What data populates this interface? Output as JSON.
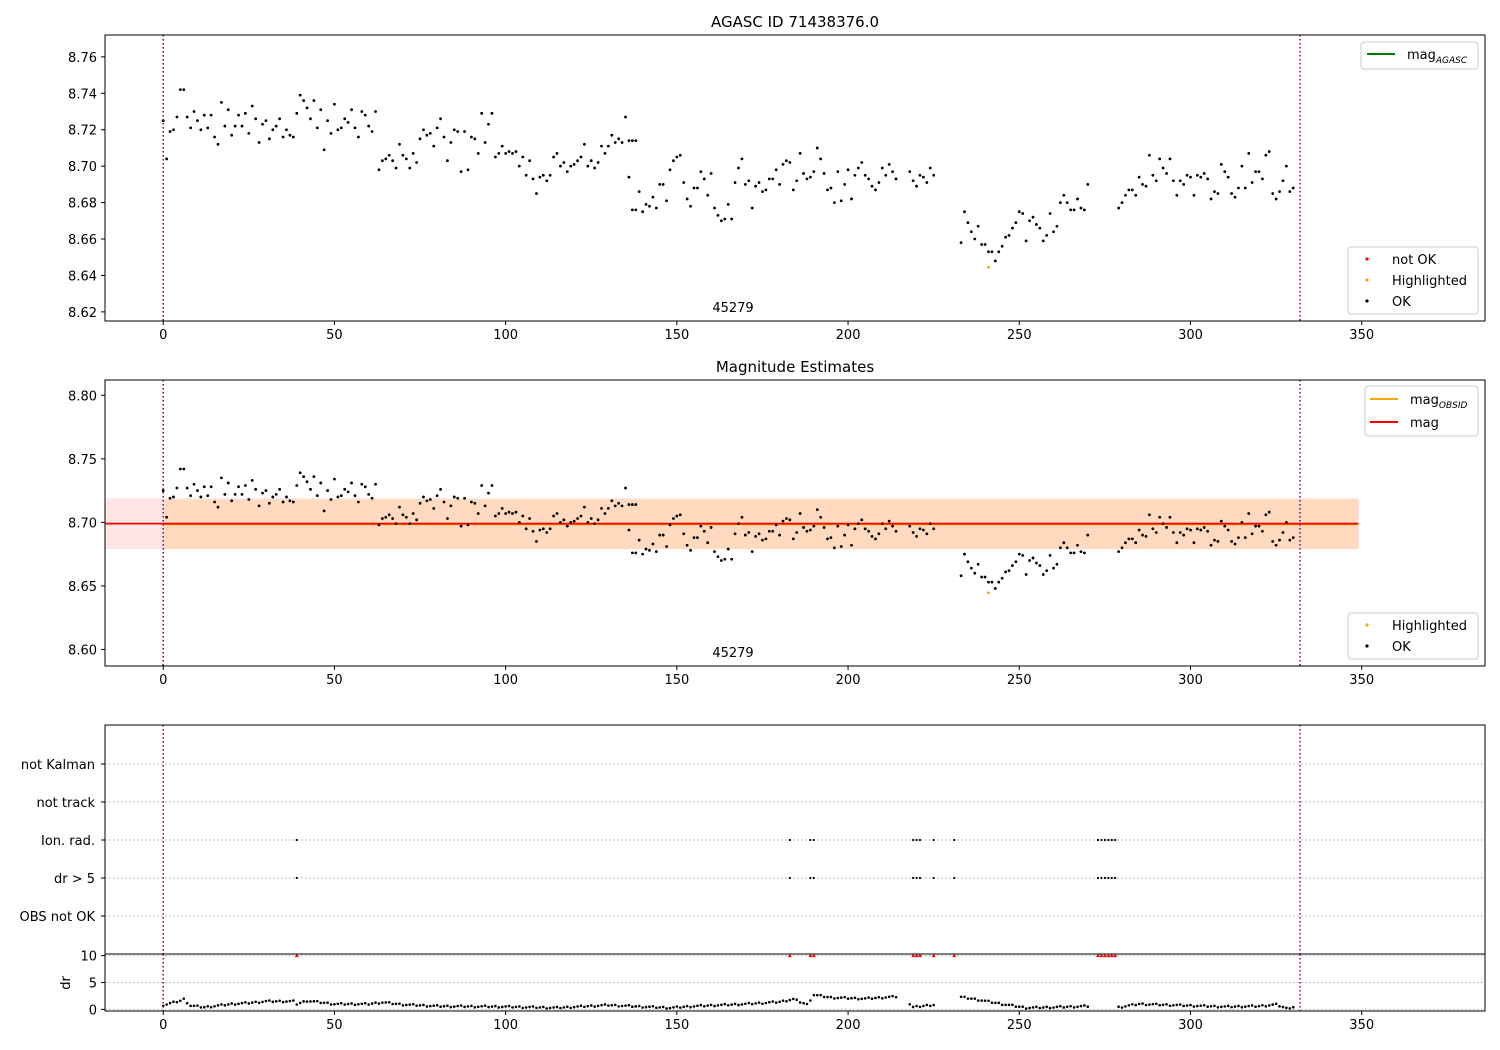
{
  "chart_data": [
    {
      "type": "scatter",
      "title": "AGASC ID 71438376.0",
      "annotation": "45279",
      "x_ticks": [
        0,
        50,
        100,
        150,
        200,
        250,
        300,
        350
      ],
      "x_range": [
        -17,
        386
      ],
      "y_ticks": [
        8.62,
        8.64,
        8.66,
        8.68,
        8.7,
        8.72,
        8.74,
        8.76
      ],
      "y_range": [
        8.615,
        8.772
      ],
      "vlines": [
        0,
        332
      ],
      "legend_lines": [
        {
          "label": "mag",
          "sub": "AGASC",
          "color": "#008000"
        }
      ],
      "legend_points": [
        {
          "label": "not OK",
          "color": "#ff0000"
        },
        {
          "label": "Highlighted",
          "color": "#ffa500"
        },
        {
          "label": "OK",
          "color": "#000000"
        }
      ],
      "highlighted": [
        [
          241,
          8.6445
        ]
      ],
      "series_segments": [
        {
          "x0": 0,
          "y": [
            8.725,
            8.704,
            8.719,
            8.72,
            8.727,
            8.742,
            8.742,
            8.727,
            8.721,
            8.73,
            8.725,
            8.72,
            8.728,
            8.721,
            8.728,
            8.716,
            8.712,
            8.735,
            8.722,
            8.731,
            8.717,
            8.722,
            8.728,
            8.722,
            8.729,
            8.718,
            8.733,
            8.726,
            8.713,
            8.723,
            8.725,
            8.715,
            8.72,
            8.722,
            8.726,
            8.716,
            8.72,
            8.717,
            8.716,
            8.729,
            8.739,
            8.736,
            8.732,
            8.726,
            8.736,
            8.721,
            8.731,
            8.709,
            8.725,
            8.718,
            8.734,
            8.72,
            8.721,
            8.726,
            8.724,
            8.731,
            8.721,
            8.716,
            8.73,
            8.728,
            8.722,
            8.719,
            8.73,
            8.698,
            8.703,
            8.704,
            8.706,
            8.703,
            8.699,
            8.712,
            8.706,
            8.704,
            8.699,
            8.707,
            8.702,
            8.715,
            8.72,
            8.717,
            8.718,
            8.711,
            8.721,
            8.726,
            8.716,
            8.703,
            8.713,
            8.72,
            8.719,
            8.697,
            8.719,
            8.698,
            8.716,
            8.715,
            8.707,
            8.729,
            8.713,
            8.723,
            8.729,
            8.705,
            8.707,
            8.711,
            8.707,
            8.708,
            8.707,
            8.708,
            8.7,
            8.705,
            8.695,
            8.703,
            8.693,
            8.685,
            8.694,
            8.695,
            8.692,
            8.695,
            8.705,
            8.707,
            8.7,
            8.702,
            8.697,
            8.7,
            8.701,
            8.703,
            8.705,
            8.712,
            8.7,
            8.703,
            8.699,
            8.702,
            8.711,
            8.707,
            8.711,
            8.717,
            8.713,
            8.715,
            8.713,
            8.727,
            8.714,
            8.714,
            8.714
          ]
        },
        {
          "x0": 136,
          "y": [
            8.694,
            8.676,
            8.676,
            8.686,
            8.675,
            8.679,
            8.678,
            8.683,
            8.677,
            8.69,
            8.69,
            8.681,
            8.698,
            8.703,
            8.705,
            8.706,
            8.691,
            8.682,
            8.678,
            8.688,
            8.688,
            8.697,
            8.693,
            8.684,
            8.696,
            8.677,
            8.673,
            8.67,
            8.671,
            8.679,
            8.671,
            8.691,
            8.699,
            8.704,
            8.69,
            8.692,
            8.677,
            8.689,
            8.691,
            8.686,
            8.687,
            8.693,
            8.693,
            8.698,
            8.69,
            8.701,
            8.703,
            8.702,
            8.687,
            8.692,
            8.707,
            8.696,
            8.693,
            8.694,
            8.697,
            8.71,
            8.704,
            8.696,
            8.687,
            8.688,
            8.68,
            8.697,
            8.681,
            8.69,
            8.698,
            8.682,
            8.695,
            8.699,
            8.702,
            8.695,
            8.693,
            8.689,
            8.687,
            8.691,
            8.699,
            8.695,
            8.701,
            8.697,
            8.693
          ]
        },
        {
          "x0": 218,
          "y": [
            8.697,
            8.692,
            8.689,
            8.695,
            8.694,
            8.691,
            8.699,
            8.695
          ]
        },
        {
          "x0": 233,
          "y": [
            8.658,
            8.675,
            8.669,
            8.664,
            8.66,
            8.667,
            8.657,
            8.657,
            8.653,
            8.653,
            8.648,
            8.653,
            8.656,
            8.661,
            8.662,
            8.666,
            8.669,
            8.675,
            8.674,
            8.659,
            8.67,
            8.672,
            8.668,
            8.666,
            8.659,
            8.662,
            8.674,
            8.664,
            8.667,
            8.68,
            8.684,
            8.68,
            8.676,
            8.676,
            8.682,
            8.677,
            8.676,
            8.69
          ]
        },
        {
          "x0": 279,
          "y": [
            8.677,
            8.68,
            8.684,
            8.687,
            8.687,
            8.684,
            8.694,
            8.69,
            8.689,
            8.706,
            8.695,
            8.692,
            8.704,
            8.699,
            8.696,
            8.704,
            8.692,
            8.684,
            8.692,
            8.69,
            8.695,
            8.694,
            8.684,
            8.695,
            8.694,
            8.696,
            8.693,
            8.682,
            8.686,
            8.685,
            8.701,
            8.697,
            8.694,
            8.685,
            8.683,
            8.688,
            8.7,
            8.688,
            8.707,
            8.691,
            8.697,
            8.697,
            8.693,
            8.706,
            8.708,
            8.685,
            8.682,
            8.686,
            8.692,
            8.7,
            8.686,
            8.688
          ]
        }
      ]
    },
    {
      "type": "scatter",
      "title": "Magnitude Estimates",
      "annotation": "45279",
      "x_ticks": [
        0,
        50,
        100,
        150,
        200,
        250,
        300,
        350
      ],
      "x_range": [
        -17,
        386
      ],
      "y_ticks": [
        8.6,
        8.65,
        8.7,
        8.75,
        8.8
      ],
      "y_ticks_labels": [
        "8.60",
        "8.65",
        "8.70",
        "8.75",
        "8.80"
      ],
      "y_range": [
        8.587,
        8.812
      ],
      "vlines": [
        0,
        332
      ],
      "mag": 8.699,
      "mag_band": [
        8.679,
        8.719
      ],
      "mag_band_x": [
        -17,
        349
      ],
      "mag_obsid": 8.6985,
      "mag_obsid_band": [
        8.679,
        8.718
      ],
      "mag_obsid_band_x": [
        0,
        349
      ],
      "legend_lines": [
        {
          "label": "mag",
          "sub": "OBSID",
          "color": "#ffa500"
        },
        {
          "label": "mag",
          "sub": "",
          "color": "#ff0000"
        }
      ],
      "legend_points": [
        {
          "label": "Highlighted",
          "color": "#ffa500"
        },
        {
          "label": "OK",
          "color": "#000000"
        }
      ],
      "highlighted": [
        [
          241,
          8.6445
        ]
      ]
    },
    {
      "type": "scatter",
      "title": "",
      "y_categories": [
        "not Kalman",
        "not track",
        "Ion. rad.",
        "dr > 5",
        "OBS not OK"
      ],
      "flags": {
        "Ion. rad.": [
          39,
          183,
          189,
          190,
          219,
          220,
          221,
          225,
          231,
          273,
          274,
          275,
          276,
          277,
          278
        ],
        "dr > 5": [
          39,
          183,
          189,
          190,
          219,
          220,
          221,
          225,
          231,
          273,
          274,
          275,
          276,
          277,
          278
        ]
      },
      "x_range": [
        -17,
        386
      ],
      "vlines": [
        0,
        332
      ]
    },
    {
      "type": "scatter",
      "ylabel": "dr",
      "y_ticks": [
        0,
        5,
        10
      ],
      "y_range": [
        -0.3,
        10.3
      ],
      "x_ticks": [
        0,
        50,
        100,
        150,
        200,
        250,
        300,
        350
      ],
      "x_range": [
        -17,
        386
      ],
      "vlines": [
        0,
        332
      ],
      "capped_value": 10,
      "capped_points": [
        39,
        183,
        189,
        190,
        219,
        220,
        221,
        225,
        231,
        273,
        274,
        275,
        276,
        277,
        278
      ],
      "dr_profile": [
        [
          0,
          0.8
        ],
        [
          5,
          1.6
        ],
        [
          6,
          1.9
        ],
        [
          8,
          0.7
        ],
        [
          12,
          0.4
        ],
        [
          20,
          1.0
        ],
        [
          25,
          1.2
        ],
        [
          30,
          1.5
        ],
        [
          38,
          1.5
        ],
        [
          39,
          1.0
        ],
        [
          42,
          1.6
        ],
        [
          50,
          1.0
        ],
        [
          60,
          1.0
        ],
        [
          64,
          1.3
        ],
        [
          70,
          0.9
        ],
        [
          80,
          0.6
        ],
        [
          100,
          0.5
        ],
        [
          115,
          0.3
        ],
        [
          130,
          0.8
        ],
        [
          140,
          0.5
        ],
        [
          148,
          0.3
        ],
        [
          155,
          0.6
        ],
        [
          170,
          1.0
        ],
        [
          180,
          1.4
        ],
        [
          184,
          1.9
        ],
        [
          188,
          0.9
        ],
        [
          190,
          2.7
        ],
        [
          195,
          2.2
        ],
        [
          205,
          2.0
        ],
        [
          217,
          2.5
        ],
        [
          218,
          1.0
        ],
        [
          219,
          0.4
        ],
        [
          224,
          0.8
        ],
        [
          230,
          1.2
        ],
        [
          232,
          2.4
        ],
        [
          238,
          1.8
        ],
        [
          245,
          1.0
        ],
        [
          252,
          0.3
        ],
        [
          260,
          0.4
        ],
        [
          270,
          0.6
        ],
        [
          272,
          0.2
        ],
        [
          279,
          0.4
        ],
        [
          285,
          1.0
        ],
        [
          295,
          0.8
        ],
        [
          310,
          0.5
        ],
        [
          320,
          0.6
        ],
        [
          325,
          0.9
        ],
        [
          328,
          0.2
        ],
        [
          332,
          0.7
        ]
      ]
    }
  ]
}
